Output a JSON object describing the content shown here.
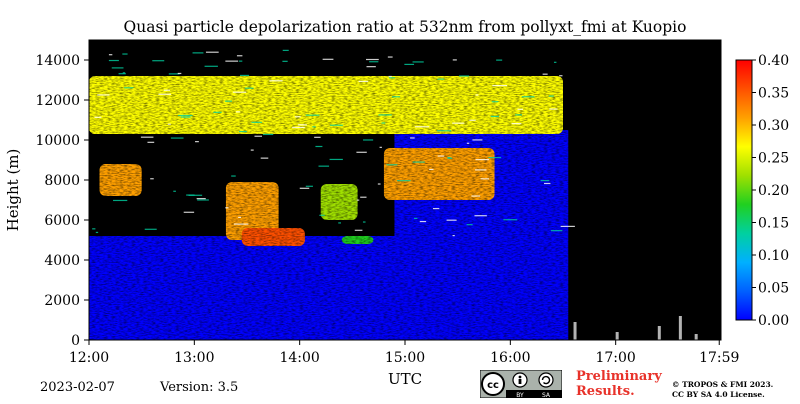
{
  "chart_data": {
    "type": "heatmap",
    "title": "Quasi particle depolarization ratio at 532nm from pollyxt_fmi at Kuopio",
    "xlabel": "UTC",
    "ylabel": "Height (m)",
    "x_range": [
      "12:00",
      "17:59"
    ],
    "x_ticks": [
      "12:00",
      "13:00",
      "14:00",
      "15:00",
      "16:00",
      "17:00",
      "17:59"
    ],
    "ylim": [
      0,
      15000
    ],
    "y_ticks": [
      0,
      2000,
      4000,
      6000,
      8000,
      10000,
      12000,
      14000
    ],
    "colorbar": {
      "min": 0.0,
      "max": 0.4,
      "ticks": [
        "0.00",
        "0.05",
        "0.10",
        "0.15",
        "0.20",
        "0.25",
        "0.30",
        "0.35",
        "0.40"
      ],
      "colors": [
        "#0000ff",
        "#0060ff",
        "#00b0ff",
        "#00d0a0",
        "#20d020",
        "#a0e000",
        "#ffff00",
        "#ffa000",
        "#ff5000",
        "#ff0000"
      ]
    },
    "regions": [
      {
        "t0": 12.0,
        "t1": 16.55,
        "h0": 0,
        "h1": 5200,
        "value": 0.02
      },
      {
        "t0": 12.0,
        "t1": 14.9,
        "h0": 5200,
        "h1": 14800,
        "value": -1
      },
      {
        "t0": 14.9,
        "t1": 16.55,
        "h0": 5200,
        "h1": 10500,
        "value": 0.03
      },
      {
        "t0": 12.0,
        "t1": 16.5,
        "h0": 10300,
        "h1": 13200,
        "value": 0.27
      },
      {
        "t0": 12.1,
        "t1": 12.5,
        "h0": 7200,
        "h1": 8800,
        "value": 0.32
      },
      {
        "t0": 13.3,
        "t1": 13.8,
        "h0": 5000,
        "h1": 7900,
        "value": 0.3
      },
      {
        "t0": 13.45,
        "t1": 14.05,
        "h0": 4700,
        "h1": 5600,
        "value": 0.35
      },
      {
        "t0": 14.2,
        "t1": 14.55,
        "h0": 6000,
        "h1": 7800,
        "value": 0.2
      },
      {
        "t0": 14.8,
        "t1": 15.85,
        "h0": 7000,
        "h1": 9600,
        "value": 0.32
      },
      {
        "t0": 14.4,
        "t1": 14.7,
        "h0": 4800,
        "h1": 5200,
        "value": 0.17
      }
    ]
  },
  "footer": {
    "date": "2023-02-07",
    "version": "Version: 3.5",
    "preliminary_line1": "Preliminary",
    "preliminary_line2": "Results.",
    "copyright_line1": "© TROPOS & FMI 2023.",
    "copyright_line2": "CC BY SA 4.0 License.",
    "license_badge": {
      "left": "BY",
      "right": "SA"
    }
  },
  "colors": {
    "background": "#ffffff",
    "no_data": "#000000",
    "preliminary_text": "#e8322a"
  }
}
